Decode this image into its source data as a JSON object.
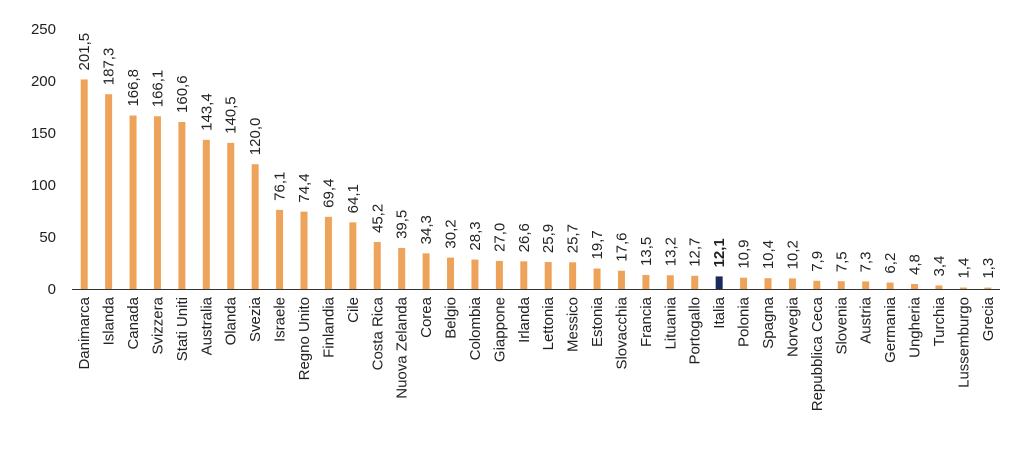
{
  "chart_data": {
    "type": "bar",
    "title": "",
    "xlabel": "",
    "ylabel": "",
    "ylim": [
      0,
      250
    ],
    "yticks": [
      "0",
      "50",
      "100",
      "150",
      "200",
      "250"
    ],
    "grid": false,
    "categories": [
      "Danimarca",
      "Islanda",
      "Canada",
      "Svizzera",
      "Stati Uniti",
      "Australia",
      "Olanda",
      "Svezia",
      "Israele",
      "Regno Unito",
      "Finlandia",
      "Cile",
      "Costa Rica",
      "Nuova Zelanda",
      "Corea",
      "Belgio",
      "Colombia",
      "Giappone",
      "Irlanda",
      "Lettonia",
      "Messico",
      "Estonia",
      "Slovacchia",
      "Francia",
      "Lituania",
      "Portogallo",
      "Italia",
      "Polonia",
      "Spagna",
      "Norvegia",
      "Repubblica Ceca",
      "Slovenia",
      "Austria",
      "Germania",
      "Ungheria",
      "Turchia",
      "Lussemburgo",
      "Grecia"
    ],
    "values": [
      201.5,
      187.3,
      166.8,
      166.1,
      160.6,
      143.4,
      140.5,
      120.0,
      76.1,
      74.4,
      69.4,
      64.1,
      45.2,
      39.5,
      34.3,
      30.2,
      28.3,
      27.0,
      26.6,
      25.9,
      25.7,
      19.7,
      17.6,
      13.5,
      13.2,
      12.7,
      12.1,
      10.9,
      10.4,
      10.2,
      7.9,
      7.5,
      7.3,
      6.2,
      4.8,
      3.4,
      1.4,
      1.3
    ],
    "data_labels": [
      "201,5",
      "187,3",
      "166,8",
      "166,1",
      "160,6",
      "143,4",
      "140,5",
      "120,0",
      "76,1",
      "74,4",
      "69,4",
      "64,1",
      "45,2",
      "39,5",
      "34,3",
      "30,2",
      "28,3",
      "27,0",
      "26,6",
      "25,9",
      "25,7",
      "19,7",
      "17,6",
      "13,5",
      "13,2",
      "12,7",
      "12,1",
      "10,9",
      "10,4",
      "10,2",
      "7,9",
      "7,5",
      "7,3",
      "6,2",
      "4,8",
      "3,4",
      "1,4",
      "1,3"
    ],
    "highlight_category": "Italia",
    "colors": {
      "bar": "#EEA35A",
      "highlight_bar": "#1B2A5C",
      "highlight_label": "#D93025",
      "axis": "#333333",
      "text": "#222222"
    }
  }
}
